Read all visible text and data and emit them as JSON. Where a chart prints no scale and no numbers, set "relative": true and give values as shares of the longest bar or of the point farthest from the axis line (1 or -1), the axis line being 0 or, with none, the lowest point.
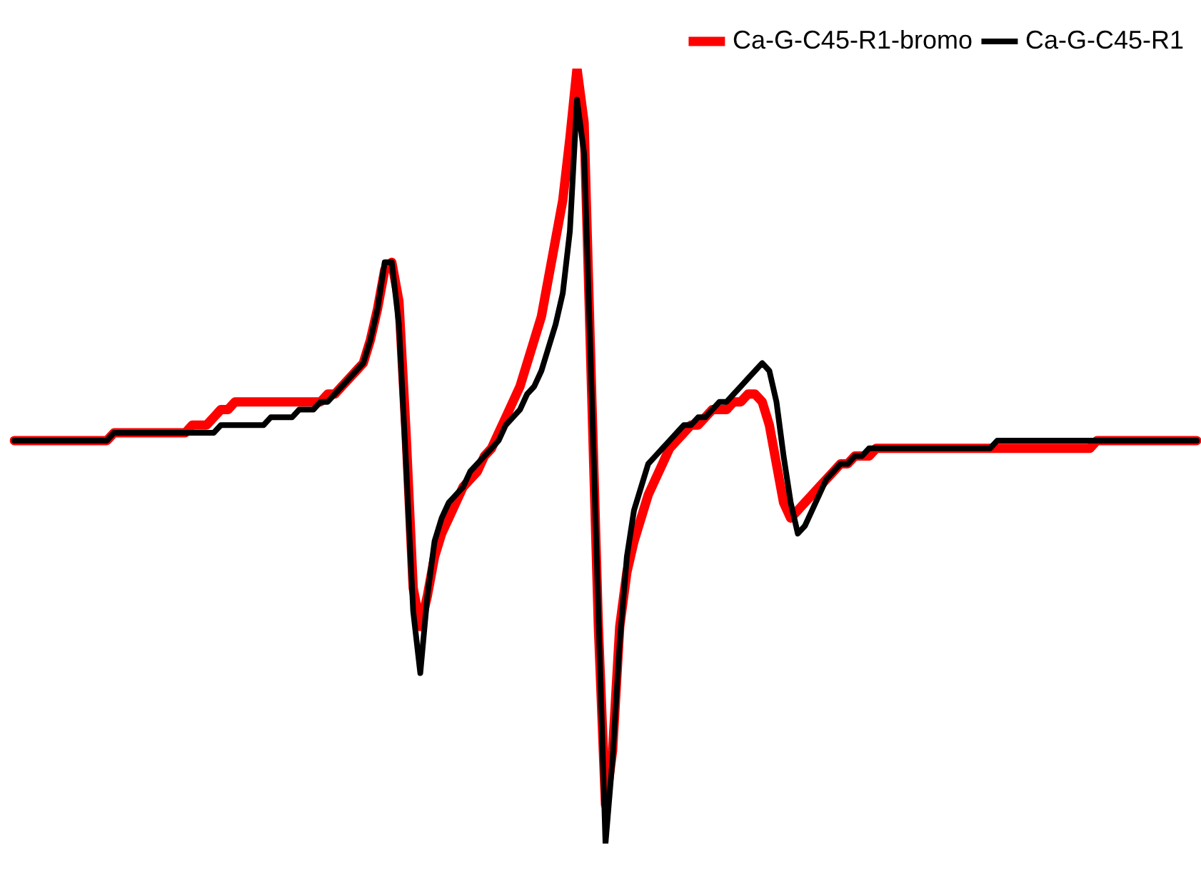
{
  "chart_data": {
    "type": "line",
    "relative": true,
    "legend": "top right",
    "marker": "none",
    "line_style": "solid",
    "categories": [
      null,
      null,
      null,
      null,
      null,
      null,
      null,
      null,
      null,
      null,
      null,
      null,
      null,
      null,
      null,
      null,
      null,
      null,
      null,
      null,
      null,
      null,
      null,
      null,
      null,
      null,
      null,
      null,
      null,
      null,
      null,
      null,
      null,
      null,
      null,
      null,
      null,
      null,
      null,
      null,
      null,
      null,
      null,
      null,
      null,
      null,
      null,
      null,
      null,
      null,
      null,
      null,
      null,
      null,
      null,
      null,
      null,
      null,
      null,
      null,
      null,
      null,
      null,
      null,
      null,
      null,
      null,
      null,
      null,
      null,
      null,
      null,
      null,
      null,
      null,
      null,
      null,
      null,
      null,
      null,
      null,
      null,
      null,
      null,
      null,
      null,
      null,
      null,
      null,
      null,
      null,
      null,
      null,
      null,
      null,
      null,
      null,
      null,
      null,
      null,
      null,
      null,
      null,
      null,
      null,
      null,
      null,
      null,
      null,
      null,
      null,
      null,
      null,
      null,
      null,
      null,
      null,
      null,
      null,
      null,
      null,
      null,
      null,
      null,
      null,
      null,
      null,
      null,
      null,
      null,
      null,
      null,
      null,
      null,
      null,
      null,
      null,
      null,
      null,
      null,
      null,
      null,
      null,
      null,
      null,
      null,
      null,
      null,
      null,
      null,
      null,
      null,
      null,
      null,
      null,
      null,
      null,
      null,
      null,
      null,
      null,
      null,
      null,
      null,
      null,
      null,
      null
    ],
    "series": [
      {
        "name": "Ca-G-C45-R1-bromo",
        "color": "#ff0000",
        "values": [
          0.52,
          0.52,
          0.52,
          0.52,
          0.52,
          0.52,
          0.52,
          0.52,
          0.52,
          0.52,
          0.52,
          0.52,
          0.52,
          0.52,
          0.53,
          0.53,
          0.53,
          0.53,
          0.53,
          0.53,
          0.53,
          0.53,
          0.53,
          0.53,
          0.53,
          0.54,
          0.54,
          0.54,
          0.55,
          0.56,
          0.56,
          0.57,
          0.57,
          0.57,
          0.57,
          0.57,
          0.57,
          0.57,
          0.57,
          0.57,
          0.57,
          0.57,
          0.57,
          0.57,
          0.58,
          0.58,
          0.59,
          0.6,
          0.61,
          0.62,
          0.65,
          0.69,
          0.74,
          0.75,
          0.7,
          0.53,
          0.33,
          0.28,
          0.32,
          0.37,
          0.4,
          0.42,
          0.44,
          0.46,
          0.47,
          0.48,
          0.5,
          0.51,
          0.53,
          0.55,
          0.57,
          0.59,
          0.62,
          0.65,
          0.68,
          0.73,
          0.78,
          0.83,
          0.91,
          1.0,
          0.93,
          0.6,
          0.28,
          0.05,
          0.12,
          0.28,
          0.35,
          0.39,
          0.42,
          0.45,
          0.47,
          0.49,
          0.51,
          0.52,
          0.53,
          0.54,
          0.54,
          0.55,
          0.56,
          0.56,
          0.56,
          0.57,
          0.57,
          0.58,
          0.58,
          0.57,
          0.54,
          0.49,
          0.44,
          0.42,
          0.43,
          0.44,
          0.45,
          0.46,
          0.47,
          0.48,
          0.49,
          0.49,
          0.5,
          0.5,
          0.5,
          0.51,
          0.51,
          0.51,
          0.51,
          0.51,
          0.51,
          0.51,
          0.51,
          0.51,
          0.51,
          0.51,
          0.51,
          0.51,
          0.51,
          0.51,
          0.51,
          0.51,
          0.51,
          0.51,
          0.51,
          0.51,
          0.51,
          0.51,
          0.51,
          0.51,
          0.51,
          0.51,
          0.51,
          0.51,
          0.51,
          0.51,
          0.52,
          0.52,
          0.52,
          0.52,
          0.52,
          0.52,
          0.52,
          0.52,
          0.52,
          0.52,
          0.52,
          0.52,
          0.52,
          0.52,
          0.52
        ]
      },
      {
        "name": "Ca-G-C45-R1",
        "color": "#000000",
        "values": [
          0.52,
          0.52,
          0.52,
          0.52,
          0.52,
          0.52,
          0.52,
          0.52,
          0.52,
          0.52,
          0.52,
          0.52,
          0.52,
          0.52,
          0.53,
          0.53,
          0.53,
          0.53,
          0.53,
          0.53,
          0.53,
          0.53,
          0.53,
          0.53,
          0.53,
          0.53,
          0.53,
          0.53,
          0.53,
          0.54,
          0.54,
          0.54,
          0.54,
          0.54,
          0.54,
          0.54,
          0.55,
          0.55,
          0.55,
          0.55,
          0.56,
          0.56,
          0.56,
          0.57,
          0.57,
          0.58,
          0.59,
          0.6,
          0.61,
          0.62,
          0.65,
          0.69,
          0.75,
          0.75,
          0.67,
          0.49,
          0.3,
          0.22,
          0.32,
          0.39,
          0.42,
          0.44,
          0.45,
          0.46,
          0.48,
          0.49,
          0.5,
          0.51,
          0.52,
          0.54,
          0.55,
          0.56,
          0.58,
          0.59,
          0.61,
          0.64,
          0.67,
          0.71,
          0.79,
          0.96,
          0.89,
          0.6,
          0.3,
          0.0,
          0.11,
          0.26,
          0.37,
          0.43,
          0.46,
          0.49,
          0.5,
          0.51,
          0.52,
          0.53,
          0.54,
          0.54,
          0.55,
          0.55,
          0.56,
          0.57,
          0.57,
          0.58,
          0.59,
          0.6,
          0.61,
          0.62,
          0.61,
          0.57,
          0.5,
          0.44,
          0.4,
          0.41,
          0.43,
          0.45,
          0.47,
          0.48,
          0.49,
          0.49,
          0.5,
          0.5,
          0.51,
          0.51,
          0.51,
          0.51,
          0.51,
          0.51,
          0.51,
          0.51,
          0.51,
          0.51,
          0.51,
          0.51,
          0.51,
          0.51,
          0.51,
          0.51,
          0.51,
          0.51,
          0.52,
          0.52,
          0.52,
          0.52,
          0.52,
          0.52,
          0.52,
          0.52,
          0.52,
          0.52,
          0.52,
          0.52,
          0.52,
          0.52,
          0.52,
          0.52,
          0.52,
          0.52,
          0.52,
          0.52,
          0.52,
          0.52,
          0.52,
          0.52,
          0.52,
          0.52,
          0.52,
          0.52,
          0.52
        ]
      }
    ]
  }
}
